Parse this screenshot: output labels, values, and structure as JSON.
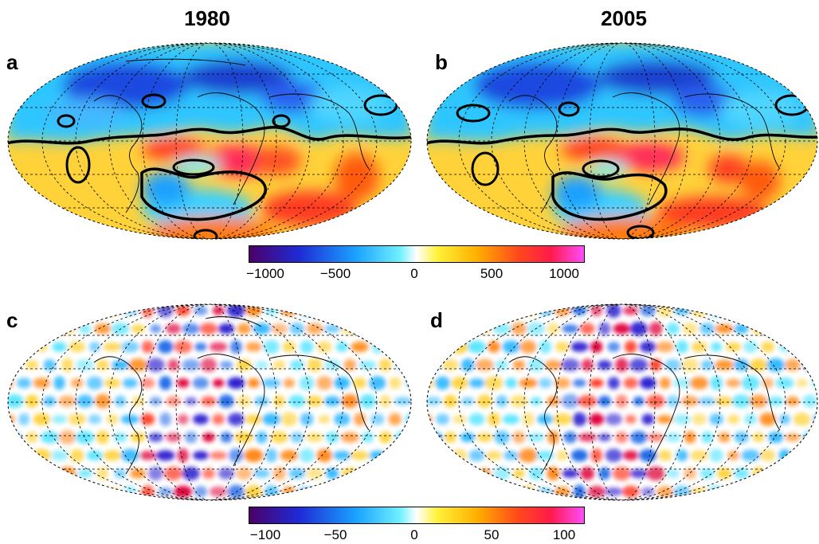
{
  "chart_data": [
    {
      "type": "heatmap",
      "panel": "a",
      "title": "1980",
      "projection": "Hammer-Aitoff (global)",
      "colormap": [
        "#4b0066",
        "#1f2bd6",
        "#1aa3ff",
        "#6ff0ff",
        "#ffffff",
        "#fff23a",
        "#ffb000",
        "#ff4a1a",
        "#ff1a4a",
        "#ff4dff"
      ],
      "colorbar_range": [
        -1000,
        1000
      ],
      "colorbar_ticks": [
        -1000,
        -500,
        0,
        500,
        1000
      ],
      "zero_contour": "thick black",
      "coastlines": true,
      "grid": true
    },
    {
      "type": "heatmap",
      "panel": "b",
      "title": "2005",
      "projection": "Hammer-Aitoff (global)",
      "colorbar_range": [
        -1000,
        1000
      ],
      "colorbar_ticks": [
        -1000,
        -500,
        0,
        500,
        1000
      ],
      "zero_contour": "thick black",
      "coastlines": true,
      "grid": true
    },
    {
      "type": "heatmap",
      "panel": "c",
      "projection": "Hammer-Aitoff (global)",
      "colorbar_range": [
        -100,
        100
      ],
      "colorbar_ticks": [
        -100,
        -50,
        0,
        50,
        100
      ],
      "coastlines": true,
      "grid": true
    },
    {
      "type": "heatmap",
      "panel": "d",
      "projection": "Hammer-Aitoff (global)",
      "colorbar_range": [
        -100,
        100
      ],
      "colorbar_ticks": [
        -100,
        -50,
        0,
        50,
        100
      ],
      "coastlines": true,
      "grid": true
    }
  ],
  "labels": {
    "title_left": "1980",
    "title_right": "2005",
    "a": "a",
    "b": "b",
    "c": "c",
    "d": "d"
  },
  "colorbar_top_ticks": [
    "−1000",
    "−500",
    "0",
    "500",
    "1000"
  ],
  "colorbar_bottom_ticks": [
    "−100",
    "−50",
    "0",
    "50",
    "100"
  ]
}
